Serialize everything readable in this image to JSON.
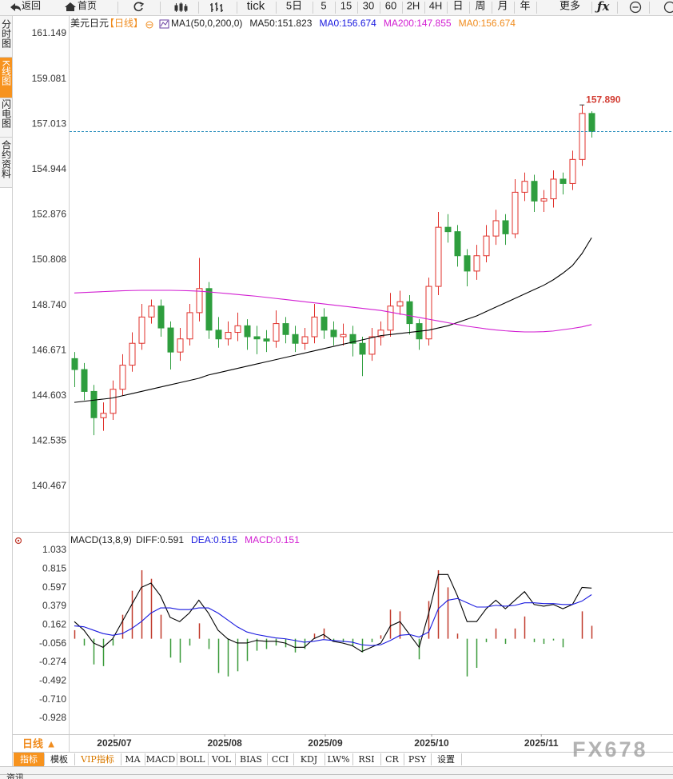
{
  "toolbar": {
    "back": "返回",
    "home": "首页",
    "items": [
      "tick",
      "5日",
      "5",
      "15",
      "30",
      "60",
      "2H",
      "4H",
      "日",
      "周",
      "月",
      "年",
      "更多"
    ]
  },
  "sidebar": [
    "分时图",
    "K线图",
    "闪电图",
    "合约资料"
  ],
  "chart_data": [
    {
      "type": "candlestick",
      "title": "美元日元",
      "period_tag": "【日线】",
      "legend_items": [
        {
          "text": "MA1(50,0,200,0)",
          "color": "#222222"
        },
        {
          "text": "MA50:151.823",
          "color": "#222222"
        },
        {
          "text": "MA0:156.674",
          "color": "#1a1adf"
        },
        {
          "text": "MA200:147.855",
          "color": "#d21ed2"
        },
        {
          "text": "MA0:156.674",
          "color": "#f08c1e"
        }
      ],
      "x": [
        0,
        1,
        2,
        3,
        4,
        5,
        6,
        7,
        8,
        9,
        10,
        11,
        12,
        13,
        14,
        15,
        16,
        17,
        18,
        19,
        20,
        21,
        22,
        23,
        24,
        25,
        26,
        27,
        28,
        29,
        30,
        31,
        32,
        33,
        34,
        35,
        36,
        37,
        38,
        39,
        40,
        41,
        42,
        43,
        44,
        45,
        46,
        47,
        48,
        49,
        50,
        51,
        52,
        53,
        54
      ],
      "xlim": [
        -0.5,
        62.5
      ],
      "open": [
        146.3,
        145.8,
        144.8,
        143.6,
        143.8,
        144.9,
        146.0,
        147.0,
        148.2,
        148.7,
        147.7,
        146.6,
        147.2,
        148.4,
        149.5,
        147.6,
        147.2,
        147.5,
        147.8,
        147.3,
        147.2,
        147.1,
        147.9,
        147.4,
        147.0,
        147.3,
        148.2,
        147.6,
        147.3,
        147.4,
        147.0,
        146.5,
        147.3,
        147.6,
        148.7,
        148.9,
        147.9,
        147.2,
        149.6,
        152.3,
        152.1,
        151.0,
        150.3,
        151.0,
        151.9,
        152.6,
        152.0,
        153.9,
        154.4,
        153.5,
        153.6,
        154.5,
        154.3,
        155.4,
        157.5
      ],
      "high": [
        146.6,
        146.1,
        145.1,
        144.3,
        145.3,
        146.5,
        147.5,
        148.8,
        149.0,
        149.0,
        148.0,
        147.7,
        148.8,
        150.9,
        149.8,
        148.2,
        148.0,
        148.4,
        148.1,
        147.8,
        147.6,
        148.5,
        148.2,
        147.8,
        147.7,
        148.8,
        148.6,
        148.0,
        147.9,
        147.8,
        147.3,
        147.7,
        148.0,
        149.3,
        149.4,
        149.2,
        148.1,
        150.0,
        153.0,
        152.9,
        152.4,
        151.3,
        151.5,
        152.4,
        153.1,
        152.9,
        154.5,
        154.8,
        154.7,
        154.0,
        154.9,
        154.8,
        155.8,
        157.89,
        157.6
      ],
      "low": [
        145.0,
        144.4,
        142.8,
        143.0,
        143.5,
        144.6,
        145.7,
        146.7,
        147.9,
        147.3,
        145.8,
        146.2,
        146.9,
        148.0,
        147.2,
        146.8,
        146.9,
        147.1,
        146.7,
        146.5,
        146.6,
        146.8,
        147.0,
        146.6,
        146.7,
        147.0,
        147.2,
        146.9,
        146.9,
        146.4,
        145.5,
        146.2,
        146.9,
        147.3,
        148.3,
        147.4,
        146.7,
        146.9,
        149.2,
        151.6,
        150.5,
        149.6,
        149.9,
        150.7,
        151.5,
        151.5,
        151.8,
        153.5,
        153.0,
        153.0,
        153.2,
        153.8,
        154.0,
        155.1,
        156.4
      ],
      "close": [
        145.8,
        144.8,
        143.6,
        143.8,
        144.9,
        146.0,
        147.0,
        148.2,
        148.7,
        147.7,
        146.6,
        147.2,
        148.4,
        149.5,
        147.6,
        147.2,
        147.5,
        147.8,
        147.3,
        147.2,
        147.1,
        147.9,
        147.4,
        147.0,
        147.3,
        148.2,
        147.6,
        147.3,
        147.4,
        147.0,
        146.5,
        147.3,
        147.6,
        148.7,
        148.9,
        147.9,
        147.2,
        149.6,
        152.3,
        152.1,
        151.0,
        150.3,
        151.0,
        151.9,
        152.6,
        152.0,
        153.9,
        154.4,
        153.5,
        153.6,
        154.5,
        154.3,
        155.4,
        157.5,
        156.674
      ],
      "up_color": "#e0312b",
      "down_color": "#2e9e3e",
      "lines": [
        {
          "color": "#000000",
          "values": [
            144.3,
            144.35,
            144.4,
            144.45,
            144.5,
            144.6,
            144.7,
            144.8,
            144.9,
            145.0,
            145.1,
            145.2,
            145.3,
            145.4,
            145.55,
            145.65,
            145.75,
            145.85,
            145.95,
            146.05,
            146.15,
            146.25,
            146.35,
            146.45,
            146.55,
            146.65,
            146.75,
            146.85,
            146.95,
            147.05,
            147.15,
            147.25,
            147.35,
            147.4,
            147.45,
            147.5,
            147.55,
            147.6,
            147.7,
            147.8,
            147.95,
            148.1,
            148.25,
            148.45,
            148.65,
            148.85,
            149.05,
            149.25,
            149.45,
            149.65,
            149.9,
            150.2,
            150.55,
            151.1,
            151.823
          ]
        },
        {
          "color": "#d21ed2",
          "values": [
            149.3,
            149.32,
            149.34,
            149.36,
            149.38,
            149.4,
            149.41,
            149.42,
            149.42,
            149.42,
            149.42,
            149.41,
            149.4,
            149.38,
            149.35,
            149.31,
            149.27,
            149.23,
            149.19,
            149.15,
            149.1,
            149.05,
            149.0,
            148.95,
            148.9,
            148.85,
            148.8,
            148.75,
            148.7,
            148.65,
            148.6,
            148.55,
            148.5,
            148.42,
            148.34,
            148.26,
            148.18,
            148.1,
            148.02,
            147.94,
            147.86,
            147.78,
            147.72,
            147.66,
            147.61,
            147.57,
            147.54,
            147.52,
            147.52,
            147.53,
            147.56,
            147.62,
            147.68,
            147.75,
            147.855
          ]
        }
      ],
      "last_price_line_color": "#2a8fbd",
      "high_annotation": {
        "value": 157.89,
        "label": "157.890",
        "color": "#d23c32"
      },
      "ylim": [
        138.567,
        161.953
      ],
      "yticks": [
        161.149,
        159.081,
        157.013,
        154.944,
        152.876,
        150.808,
        {
          "value": 148.74,
          "label": "148.740"
        },
        146.671,
        144.603,
        142.535,
        140.467
      ]
    },
    {
      "type": "macd",
      "title": "MACD(13,8,9)",
      "legend_items": [
        {
          "text": "DIFF:0.591",
          "color": "#222222"
        },
        {
          "text": "DEA:0.515",
          "color": "#1a1adf"
        },
        {
          "text": "MACD:0.151",
          "color": "#d21ed2"
        }
      ],
      "x": [
        0,
        1,
        2,
        3,
        4,
        5,
        6,
        7,
        8,
        9,
        10,
        11,
        12,
        13,
        14,
        15,
        16,
        17,
        18,
        19,
        20,
        21,
        22,
        23,
        24,
        25,
        26,
        27,
        28,
        29,
        30,
        31,
        32,
        33,
        34,
        35,
        36,
        37,
        38,
        39,
        40,
        41,
        42,
        43,
        44,
        45,
        46,
        47,
        48,
        49,
        50,
        51,
        52,
        53,
        54
      ],
      "xlim": [
        -0.5,
        62.5
      ],
      "xticks": [
        {
          "value": 4.17,
          "label": "2025/07"
        },
        {
          "value": 15.7,
          "label": "2025/08"
        },
        {
          "value": 26.2,
          "label": "2025/09"
        },
        {
          "value": 37.3,
          "label": "2025/10"
        },
        {
          "value": 48.75,
          "label": "2025/11"
        }
      ],
      "series": [
        {
          "color": "#000000",
          "values": [
            0.2,
            0.1,
            -0.05,
            -0.1,
            0.0,
            0.2,
            0.4,
            0.6,
            0.65,
            0.5,
            0.25,
            0.2,
            0.3,
            0.45,
            0.3,
            0.1,
            0.0,
            -0.05,
            -0.05,
            -0.02,
            -0.03,
            -0.03,
            -0.05,
            -0.1,
            -0.1,
            0.0,
            0.05,
            -0.03,
            -0.05,
            -0.08,
            -0.15,
            -0.1,
            -0.05,
            0.15,
            0.2,
            0.05,
            -0.1,
            0.3,
            0.75,
            0.75,
            0.5,
            0.2,
            0.2,
            0.35,
            0.45,
            0.35,
            0.45,
            0.55,
            0.4,
            0.38,
            0.4,
            0.35,
            0.4,
            0.6,
            0.591
          ]
        },
        {
          "color": "#1a1adf",
          "values": [
            0.15,
            0.14,
            0.1,
            0.06,
            0.04,
            0.06,
            0.12,
            0.2,
            0.3,
            0.36,
            0.36,
            0.34,
            0.34,
            0.36,
            0.36,
            0.3,
            0.22,
            0.14,
            0.08,
            0.05,
            0.03,
            0.01,
            0.0,
            -0.02,
            -0.04,
            -0.03,
            -0.01,
            -0.02,
            -0.03,
            -0.04,
            -0.07,
            -0.08,
            -0.07,
            -0.02,
            0.04,
            0.05,
            0.02,
            0.08,
            0.35,
            0.45,
            0.47,
            0.42,
            0.37,
            0.37,
            0.39,
            0.38,
            0.39,
            0.42,
            0.42,
            0.41,
            0.41,
            0.4,
            0.4,
            0.44,
            0.515
          ]
        }
      ],
      "histogram": {
        "up_color": "#c0392b",
        "down_color": "#3a9a3a",
        "values": [
          0.1,
          -0.08,
          -0.3,
          -0.32,
          -0.08,
          0.28,
          0.56,
          0.8,
          0.7,
          0.28,
          -0.22,
          -0.28,
          -0.08,
          0.18,
          -0.12,
          -0.4,
          -0.44,
          -0.38,
          -0.26,
          -0.14,
          -0.12,
          -0.08,
          -0.1,
          -0.16,
          -0.12,
          0.06,
          0.12,
          -0.02,
          -0.04,
          -0.08,
          -0.16,
          -0.04,
          0.04,
          0.34,
          0.32,
          0.0,
          -0.24,
          0.44,
          0.8,
          0.6,
          0.06,
          -0.44,
          -0.34,
          -0.04,
          0.12,
          -0.06,
          0.12,
          0.26,
          -0.04,
          -0.06,
          -0.02,
          -0.1,
          0.0,
          0.32,
          0.151
        ]
      },
      "ylim": [
        -1.115,
        1.108
      ],
      "yticks": [
        1.033,
        0.815,
        0.597,
        0.379,
        0.162,
        -0.056,
        -0.274,
        -0.492,
        {
          "value": -0.71,
          "label": "-0.710"
        },
        -0.928
      ]
    }
  ],
  "period_button": "日线 ▲",
  "tabs": [
    "指标",
    "模板",
    "VIP指标",
    "MA",
    "MACD",
    "BOLL",
    "VOL",
    "BIAS",
    "CCI",
    "KDJ",
    "LW%",
    "RSI",
    "CR",
    "PSY",
    "设置"
  ],
  "watermark": "FX678",
  "footer_text": "资讯"
}
